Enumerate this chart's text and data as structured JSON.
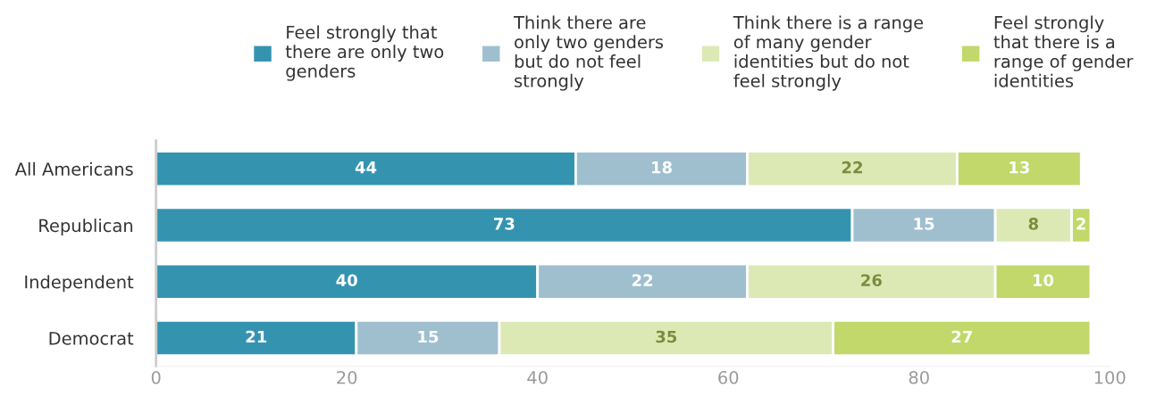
{
  "chart_data": {
    "type": "bar",
    "orientation": "horizontal",
    "stacked": true,
    "categories": [
      "All Americans",
      "Republican",
      "Independent",
      "Democrat"
    ],
    "series": [
      {
        "name": "Feel strongly that\nthere are only two\ngenders",
        "color": "#3494b0",
        "values": [
          44,
          73,
          40,
          21
        ]
      },
      {
        "name": "Think there are\nonly two genders\nbut do not feel\nstrongly",
        "color": "#9fbfcf",
        "values": [
          18,
          15,
          22,
          15
        ]
      },
      {
        "name": "Think there is a range\nof many gender\nidentities but do not\nfeel strongly",
        "color": "#dde9b5",
        "values": [
          22,
          8,
          26,
          35
        ]
      },
      {
        "name": "Feel strongly\nthat there is a\nrange of gender\nidentities",
        "color": "#c2d86a",
        "values": [
          13,
          2,
          10,
          27
        ]
      }
    ],
    "xlim": [
      0,
      100
    ],
    "xticks": [
      0,
      20,
      40,
      60,
      80,
      100
    ],
    "data_labels": true,
    "legend": "top",
    "grid": false
  }
}
